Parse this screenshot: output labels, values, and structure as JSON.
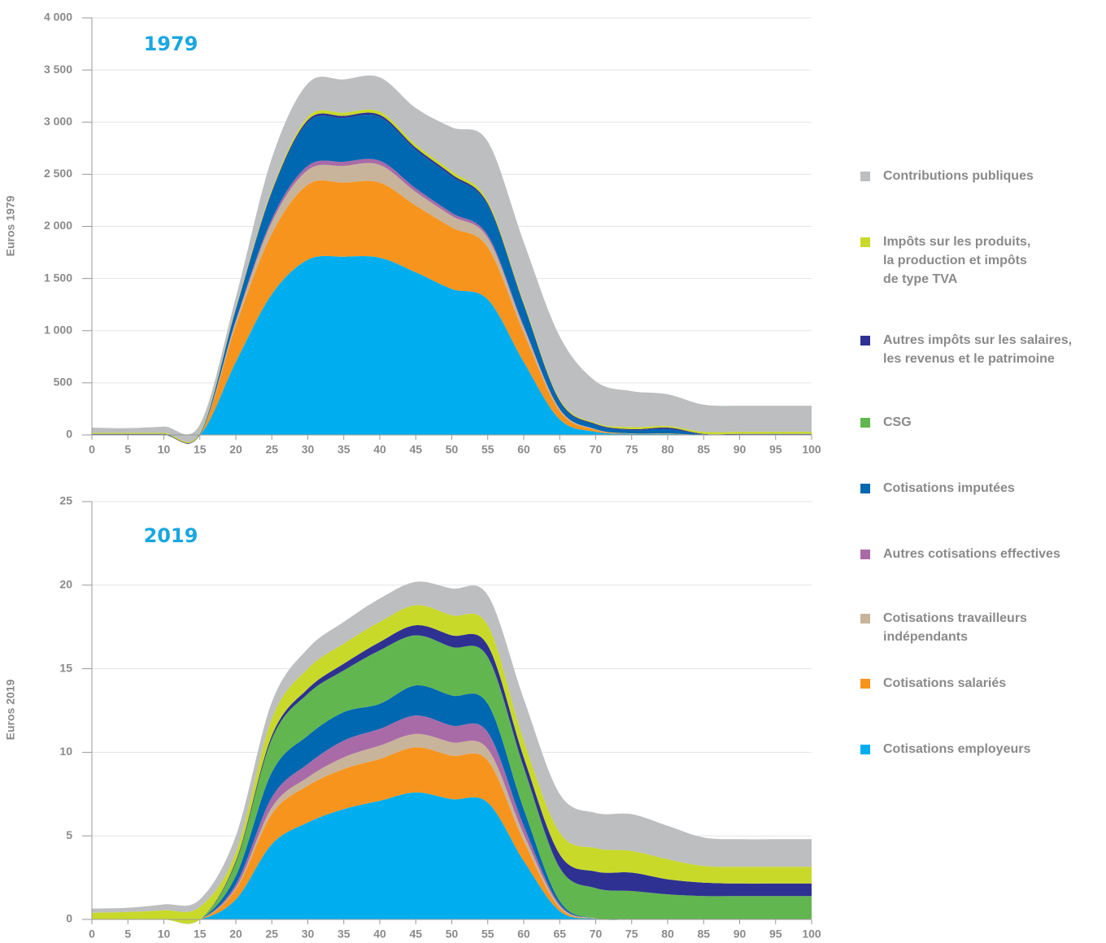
{
  "chart_data": [
    {
      "type": "area",
      "title": "1979",
      "y_label": "Euros 1979",
      "x": [
        0,
        5,
        10,
        15,
        20,
        25,
        30,
        35,
        40,
        45,
        50,
        55,
        60,
        65,
        70,
        75,
        80,
        85,
        90,
        95,
        100
      ],
      "xlim": [
        0,
        100
      ],
      "xticks": [
        0,
        5,
        10,
        15,
        20,
        25,
        30,
        35,
        40,
        45,
        50,
        55,
        60,
        65,
        70,
        75,
        80,
        85,
        90,
        95,
        100
      ],
      "ylim": [
        0,
        4000
      ],
      "yticks": [
        0,
        {
          "value": 500,
          "label": "500"
        },
        {
          "value": 1000,
          "label": "1 000"
        },
        {
          "value": 1500,
          "label": "1 500"
        },
        {
          "value": 2000,
          "label": "2 000"
        },
        {
          "value": 2500,
          "label": "2 500"
        },
        {
          "value": 3000,
          "label": "3 000"
        },
        {
          "value": 3500,
          "label": "3 500"
        },
        {
          "value": 4000,
          "label": "4 000"
        }
      ],
      "grid": true,
      "series": [
        {
          "name": "Cotisations employeurs",
          "color": "#00aeef",
          "values": [
            0,
            0,
            0,
            0,
            700,
            1350,
            1680,
            1710,
            1700,
            1560,
            1400,
            1300,
            700,
            150,
            30,
            10,
            10,
            0,
            0,
            0,
            0
          ]
        },
        {
          "name": "Cotisations salariés",
          "color": "#f7941d",
          "values": [
            0,
            0,
            0,
            0,
            350,
            580,
            720,
            710,
            720,
            640,
            590,
            500,
            280,
            80,
            20,
            5,
            5,
            0,
            0,
            0,
            0
          ]
        },
        {
          "name": "Cotisations travailleurs\nindépendants",
          "color": "#c8b49a",
          "values": [
            0,
            0,
            0,
            0,
            40,
            110,
            140,
            160,
            170,
            130,
            110,
            90,
            50,
            15,
            5,
            0,
            0,
            0,
            0,
            0,
            0
          ]
        },
        {
          "name": "Autres cotisations effectives",
          "color": "#a96ba8",
          "values": [
            0,
            0,
            0,
            0,
            10,
            30,
            40,
            40,
            40,
            35,
            30,
            25,
            15,
            5,
            0,
            0,
            0,
            0,
            0,
            0,
            0
          ]
        },
        {
          "name": "Cotisations imputées",
          "color": "#0067b1",
          "values": [
            5,
            5,
            5,
            5,
            100,
            250,
            420,
            420,
            420,
            370,
            350,
            290,
            200,
            70,
            40,
            30,
            40,
            5,
            5,
            5,
            5
          ]
        },
        {
          "name": "CSG",
          "color": "#62b64f",
          "values": [
            0,
            0,
            0,
            0,
            0,
            0,
            0,
            0,
            0,
            0,
            0,
            0,
            0,
            0,
            0,
            0,
            0,
            0,
            0,
            0,
            0
          ]
        },
        {
          "name": "Autres impôts sur les salaires,\nles revenus et le patrimoine",
          "color": "#2e3192",
          "values": [
            5,
            5,
            5,
            5,
            10,
            15,
            20,
            20,
            20,
            20,
            20,
            15,
            10,
            10,
            10,
            10,
            15,
            5,
            5,
            5,
            5
          ]
        },
        {
          "name": "Impôts sur les produits,\nla production et impôts\nde type TVA",
          "color": "#c9d92a",
          "values": [
            10,
            10,
            10,
            10,
            10,
            20,
            30,
            30,
            30,
            30,
            30,
            25,
            20,
            15,
            10,
            20,
            15,
            20,
            20,
            20,
            20
          ]
        },
        {
          "name": "Contributions publiques",
          "color": "#bcbec0",
          "values": [
            50,
            45,
            60,
            80,
            100,
            300,
            320,
            320,
            330,
            350,
            420,
            570,
            575,
            600,
            400,
            345,
            305,
            260,
            250,
            250,
            250
          ]
        }
      ]
    },
    {
      "type": "area",
      "title": "2019",
      "y_label": "Euros 2019",
      "x": [
        0,
        5,
        10,
        15,
        20,
        25,
        30,
        35,
        40,
        45,
        50,
        55,
        60,
        65,
        70,
        75,
        80,
        85,
        90,
        95,
        100
      ],
      "xlim": [
        0,
        100
      ],
      "xticks": [
        0,
        5,
        10,
        15,
        20,
        25,
        30,
        35,
        40,
        45,
        50,
        55,
        60,
        65,
        70,
        75,
        80,
        85,
        90,
        95,
        100
      ],
      "ylim": [
        0,
        25
      ],
      "yticks": [
        0,
        5,
        10,
        15,
        20,
        25
      ],
      "grid": true,
      "series": [
        {
          "values": [
            0,
            0,
            0,
            0,
            1.2,
            4.5,
            5.8,
            6.6,
            7.1,
            7.6,
            7.2,
            7.0,
            3.5,
            0.5,
            0.05,
            0,
            0,
            0,
            0,
            0,
            0
          ]
        },
        {
          "values": [
            0,
            0,
            0,
            0,
            0.6,
            1.8,
            2.2,
            2.4,
            2.5,
            2.7,
            2.6,
            2.5,
            1.2,
            0.2,
            0.02,
            0,
            0,
            0,
            0,
            0,
            0
          ]
        },
        {
          "values": [
            0,
            0,
            0,
            0,
            0.1,
            0.4,
            0.5,
            0.7,
            0.8,
            0.8,
            0.8,
            0.7,
            0.4,
            0.1,
            0,
            0,
            0,
            0,
            0,
            0,
            0
          ]
        },
        {
          "values": [
            0,
            0,
            0,
            0,
            0.2,
            0.6,
            0.8,
            1.0,
            1.0,
            1.1,
            1.0,
            1.0,
            0.5,
            0.1,
            0,
            0,
            0,
            0,
            0,
            0,
            0
          ]
        },
        {
          "values": [
            0,
            0,
            0,
            0,
            0.5,
            1.5,
            1.7,
            1.7,
            1.5,
            1.8,
            1.8,
            1.7,
            1.0,
            0.2,
            0,
            0,
            0,
            0,
            0,
            0,
            0
          ]
        },
        {
          "values": [
            0,
            0,
            0,
            0,
            0.8,
            2.0,
            2.5,
            2.5,
            3.2,
            3.0,
            2.9,
            2.8,
            2.5,
            2.0,
            1.8,
            1.7,
            1.5,
            1.4,
            1.4,
            1.4,
            1.4
          ]
        },
        {
          "values": [
            0,
            0,
            0,
            0,
            0.1,
            0.2,
            0.3,
            0.4,
            0.5,
            0.6,
            0.7,
            0.7,
            0.6,
            0.8,
            1.0,
            1.1,
            0.9,
            0.8,
            0.75,
            0.75,
            0.75
          ]
        },
        {
          "values": [
            0.4,
            0.45,
            0.55,
            0.75,
            0.5,
            1.0,
            1.2,
            1.2,
            1.2,
            1.2,
            1.2,
            1.2,
            1.0,
            1.3,
            1.4,
            1.3,
            1.2,
            1.0,
            1.0,
            1.0,
            1.0
          ]
        },
        {
          "values": [
            0.25,
            0.25,
            0.35,
            0.45,
            1.0,
            1.0,
            1.2,
            1.3,
            1.4,
            1.4,
            1.6,
            1.8,
            2.5,
            2.3,
            2.1,
            2.2,
            2.0,
            1.7,
            1.65,
            1.65,
            1.65
          ]
        }
      ]
    }
  ]
}
